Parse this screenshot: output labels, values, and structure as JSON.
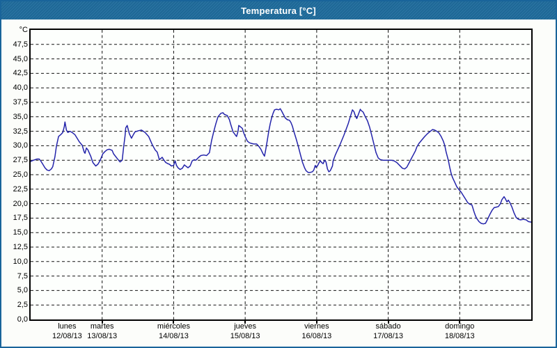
{
  "window": {
    "title": "Temperatura [°C]"
  },
  "colors": {
    "titlebar_bg": "#1e6b9c",
    "titlebar_text": "#ffffff",
    "frame_border": "#19649a",
    "plot_border": "#000000",
    "grid_color": "#111111",
    "line_color": "#2323aa",
    "axis_text": "#000000"
  },
  "chart_data": {
    "type": "line",
    "title": "Temperatura [°C]",
    "ylabel": "°C",
    "ylim": [
      0,
      50
    ],
    "ytick_step": 2.5,
    "ytick_labels": [
      "0,0",
      "2,5",
      "5,0",
      "7,5",
      "10,0",
      "12,5",
      "15,0",
      "17,5",
      "20,0",
      "22,5",
      "25,0",
      "27,5",
      "30,0",
      "32,5",
      "35,0",
      "37,5",
      "40,0",
      "42,5",
      "45,0",
      "47,5"
    ],
    "x_days": [
      {
        "name": "lunes",
        "date": "12/08/13"
      },
      {
        "name": "martes",
        "date": "13/08/13"
      },
      {
        "name": "miércoles",
        "date": "14/08/13"
      },
      {
        "name": "jueves",
        "date": "15/08/13"
      },
      {
        "name": "viernes",
        "date": "16/08/13"
      },
      {
        "name": "sábado",
        "date": "17/08/13"
      },
      {
        "name": "domingo",
        "date": "18/08/13"
      }
    ],
    "x_unit": "days (0 = lunes 12/08/13 00:00, 7 = end of domingo 18/08/13)",
    "grid": "dashed",
    "legend": "none",
    "series": [
      {
        "name": "Temperatura",
        "color": "#2323aa",
        "points": [
          [
            0.0,
            27.3
          ],
          [
            0.04,
            27.5
          ],
          [
            0.09,
            27.7
          ],
          [
            0.12,
            27.7
          ],
          [
            0.14,
            27.4
          ],
          [
            0.17,
            26.8
          ],
          [
            0.2,
            26.2
          ],
          [
            0.23,
            25.8
          ],
          [
            0.26,
            25.7
          ],
          [
            0.29,
            26.0
          ],
          [
            0.31,
            26.4
          ],
          [
            0.34,
            28.1
          ],
          [
            0.36,
            29.9
          ],
          [
            0.38,
            31.0
          ],
          [
            0.39,
            31.6
          ],
          [
            0.42,
            31.9
          ],
          [
            0.45,
            32.3
          ],
          [
            0.47,
            33.3
          ],
          [
            0.48,
            34.1
          ],
          [
            0.5,
            32.7
          ],
          [
            0.52,
            32.3
          ],
          [
            0.55,
            32.5
          ],
          [
            0.58,
            32.3
          ],
          [
            0.62,
            31.9
          ],
          [
            0.65,
            31.3
          ],
          [
            0.68,
            30.7
          ],
          [
            0.72,
            30.1
          ],
          [
            0.75,
            28.9
          ],
          [
            0.76,
            28.7
          ],
          [
            0.78,
            29.6
          ],
          [
            0.8,
            29.3
          ],
          [
            0.84,
            28.2
          ],
          [
            0.87,
            27.1
          ],
          [
            0.91,
            26.5
          ],
          [
            0.94,
            26.8
          ],
          [
            0.97,
            27.4
          ],
          [
            1.01,
            28.6
          ],
          [
            1.04,
            29.0
          ],
          [
            1.07,
            29.3
          ],
          [
            1.1,
            29.4
          ],
          [
            1.14,
            29.2
          ],
          [
            1.16,
            28.6
          ],
          [
            1.21,
            27.8
          ],
          [
            1.25,
            27.2
          ],
          [
            1.28,
            27.5
          ],
          [
            1.3,
            29.7
          ],
          [
            1.32,
            31.7
          ],
          [
            1.33,
            33.1
          ],
          [
            1.35,
            33.5
          ],
          [
            1.38,
            32.1
          ],
          [
            1.41,
            31.3
          ],
          [
            1.44,
            32.0
          ],
          [
            1.46,
            32.4
          ],
          [
            1.51,
            32.6
          ],
          [
            1.55,
            32.7
          ],
          [
            1.6,
            32.3
          ],
          [
            1.65,
            31.6
          ],
          [
            1.7,
            30.2
          ],
          [
            1.74,
            29.3
          ],
          [
            1.77,
            28.9
          ],
          [
            1.8,
            27.6
          ],
          [
            1.84,
            28.0
          ],
          [
            1.86,
            27.6
          ],
          [
            1.89,
            27.1
          ],
          [
            1.92,
            26.9
          ],
          [
            1.94,
            26.8
          ],
          [
            1.97,
            26.5
          ],
          [
            2.0,
            26.6
          ],
          [
            2.02,
            27.4
          ],
          [
            2.04,
            26.6
          ],
          [
            2.06,
            26.2
          ],
          [
            2.09,
            25.9
          ],
          [
            2.12,
            26.1
          ],
          [
            2.15,
            26.7
          ],
          [
            2.18,
            26.4
          ],
          [
            2.2,
            26.2
          ],
          [
            2.23,
            26.5
          ],
          [
            2.26,
            27.4
          ],
          [
            2.29,
            27.6
          ],
          [
            2.31,
            27.5
          ],
          [
            2.35,
            28.0
          ],
          [
            2.38,
            28.3
          ],
          [
            2.42,
            28.4
          ],
          [
            2.46,
            28.3
          ],
          [
            2.5,
            28.8
          ],
          [
            2.53,
            30.9
          ],
          [
            2.56,
            32.4
          ],
          [
            2.59,
            33.8
          ],
          [
            2.62,
            35.0
          ],
          [
            2.66,
            35.6
          ],
          [
            2.69,
            35.7
          ],
          [
            2.71,
            35.4
          ],
          [
            2.75,
            35.2
          ],
          [
            2.78,
            34.5
          ],
          [
            2.8,
            33.6
          ],
          [
            2.83,
            32.4
          ],
          [
            2.86,
            31.9
          ],
          [
            2.88,
            31.6
          ],
          [
            2.9,
            32.5
          ],
          [
            2.91,
            33.5
          ],
          [
            2.93,
            33.3
          ],
          [
            2.96,
            33.0
          ],
          [
            2.98,
            32.2
          ],
          [
            3.0,
            31.6
          ],
          [
            3.03,
            30.8
          ],
          [
            3.06,
            30.5
          ],
          [
            3.09,
            30.4
          ],
          [
            3.12,
            30.3
          ],
          [
            3.16,
            30.3
          ],
          [
            3.19,
            29.9
          ],
          [
            3.22,
            29.4
          ],
          [
            3.25,
            28.6
          ],
          [
            3.27,
            28.2
          ],
          [
            3.29,
            29.5
          ],
          [
            3.31,
            31.0
          ],
          [
            3.33,
            32.5
          ],
          [
            3.35,
            33.8
          ],
          [
            3.37,
            34.8
          ],
          [
            3.39,
            35.6
          ],
          [
            3.41,
            36.2
          ],
          [
            3.44,
            36.3
          ],
          [
            3.47,
            36.2
          ],
          [
            3.49,
            36.4
          ],
          [
            3.51,
            36.0
          ],
          [
            3.53,
            35.5
          ],
          [
            3.56,
            34.8
          ],
          [
            3.59,
            34.5
          ],
          [
            3.62,
            34.4
          ],
          [
            3.64,
            34.0
          ],
          [
            3.66,
            33.4
          ],
          [
            3.68,
            32.5
          ],
          [
            3.71,
            31.3
          ],
          [
            3.74,
            30.0
          ],
          [
            3.77,
            28.6
          ],
          [
            3.8,
            27.2
          ],
          [
            3.83,
            26.2
          ],
          [
            3.85,
            25.7
          ],
          [
            3.88,
            25.4
          ],
          [
            3.91,
            25.4
          ],
          [
            3.94,
            25.5
          ],
          [
            3.96,
            25.8
          ],
          [
            3.98,
            26.6
          ],
          [
            3.99,
            26.3
          ],
          [
            4.01,
            26.5
          ],
          [
            4.03,
            27.0
          ],
          [
            4.05,
            27.4
          ],
          [
            4.07,
            27.1
          ],
          [
            4.09,
            26.9
          ],
          [
            4.11,
            27.5
          ],
          [
            4.13,
            27.2
          ],
          [
            4.15,
            26.0
          ],
          [
            4.17,
            25.5
          ],
          [
            4.19,
            25.7
          ],
          [
            4.22,
            26.5
          ],
          [
            4.23,
            27.4
          ],
          [
            4.26,
            28.4
          ],
          [
            4.29,
            29.2
          ],
          [
            4.32,
            30.0
          ],
          [
            4.35,
            30.9
          ],
          [
            4.38,
            31.8
          ],
          [
            4.41,
            32.8
          ],
          [
            4.44,
            33.8
          ],
          [
            4.47,
            35.0
          ],
          [
            4.5,
            36.2
          ],
          [
            4.52,
            35.9
          ],
          [
            4.54,
            35.2
          ],
          [
            4.56,
            34.7
          ],
          [
            4.58,
            35.3
          ],
          [
            4.61,
            36.3
          ],
          [
            4.62,
            36.1
          ],
          [
            4.65,
            35.8
          ],
          [
            4.68,
            35.0
          ],
          [
            4.71,
            34.3
          ],
          [
            4.74,
            33.2
          ],
          [
            4.77,
            31.8
          ],
          [
            4.8,
            30.3
          ],
          [
            4.83,
            28.8
          ],
          [
            4.86,
            27.9
          ],
          [
            4.89,
            27.6
          ],
          [
            4.93,
            27.5
          ],
          [
            4.97,
            27.5
          ],
          [
            5.0,
            27.5
          ],
          [
            5.04,
            27.5
          ],
          [
            5.08,
            27.4
          ],
          [
            5.12,
            27.1
          ],
          [
            5.16,
            26.6
          ],
          [
            5.2,
            26.1
          ],
          [
            5.23,
            26.0
          ],
          [
            5.26,
            26.3
          ],
          [
            5.29,
            27.0
          ],
          [
            5.32,
            27.7
          ],
          [
            5.35,
            28.4
          ],
          [
            5.38,
            29.1
          ],
          [
            5.4,
            29.8
          ],
          [
            5.43,
            30.4
          ],
          [
            5.47,
            31.0
          ],
          [
            5.51,
            31.6
          ],
          [
            5.55,
            32.1
          ],
          [
            5.59,
            32.5
          ],
          [
            5.62,
            32.8
          ],
          [
            5.65,
            32.7
          ],
          [
            5.68,
            32.5
          ],
          [
            5.71,
            32.2
          ],
          [
            5.74,
            31.6
          ],
          [
            5.77,
            30.8
          ],
          [
            5.79,
            30.1
          ],
          [
            5.81,
            28.9
          ],
          [
            5.84,
            27.5
          ],
          [
            5.86,
            26.3
          ],
          [
            5.88,
            25.2
          ],
          [
            5.9,
            24.5
          ],
          [
            5.93,
            23.7
          ],
          [
            5.96,
            22.9
          ],
          [
            5.99,
            22.4
          ],
          [
            6.02,
            22.0
          ],
          [
            6.05,
            21.4
          ],
          [
            6.08,
            20.8
          ],
          [
            6.11,
            20.2
          ],
          [
            6.14,
            19.9
          ],
          [
            6.17,
            19.8
          ],
          [
            6.18,
            19.4
          ],
          [
            6.2,
            18.6
          ],
          [
            6.22,
            17.9
          ],
          [
            6.24,
            17.4
          ],
          [
            6.27,
            16.9
          ],
          [
            6.3,
            16.6
          ],
          [
            6.33,
            16.5
          ],
          [
            6.36,
            16.6
          ],
          [
            6.39,
            17.3
          ],
          [
            6.42,
            18.1
          ],
          [
            6.45,
            18.8
          ],
          [
            6.48,
            19.3
          ],
          [
            6.51,
            19.4
          ],
          [
            6.54,
            19.5
          ],
          [
            6.57,
            20.0
          ],
          [
            6.59,
            20.7
          ],
          [
            6.62,
            21.2
          ],
          [
            6.64,
            20.8
          ],
          [
            6.66,
            20.3
          ],
          [
            6.68,
            20.6
          ],
          [
            6.7,
            20.2
          ],
          [
            6.73,
            19.4
          ],
          [
            6.76,
            18.4
          ],
          [
            6.79,
            17.6
          ],
          [
            6.82,
            17.3
          ],
          [
            6.85,
            17.2
          ],
          [
            6.89,
            17.3
          ],
          [
            6.93,
            17.2
          ],
          [
            6.96,
            16.9
          ],
          [
            7.0,
            16.8
          ]
        ]
      }
    ]
  }
}
